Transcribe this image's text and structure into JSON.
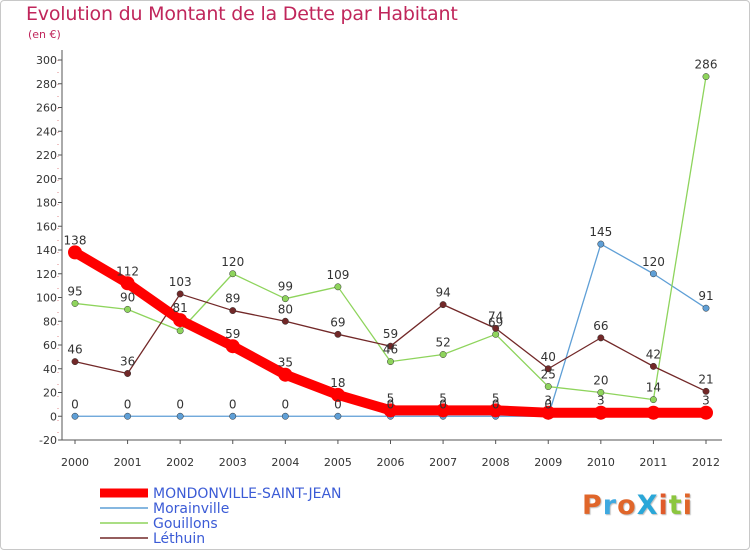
{
  "title": "Evolution du Montant de la Dette par Habitant",
  "subtitle": "(en €)",
  "logo": {
    "text": "ProXiti",
    "letter_colors": [
      "#e0662a",
      "#3fa9e0",
      "#e0662a",
      "#2aa7d8",
      "#e05a2a",
      "#8cc63f",
      "#e0662a"
    ]
  },
  "chart_data": {
    "type": "line",
    "title": "Evolution du Montant de la Dette par Habitant",
    "subtitle": "(en €)",
    "xlabel": "",
    "ylabel": "",
    "categories": [
      "2000",
      "2001",
      "2002",
      "2003",
      "2004",
      "2005",
      "2006",
      "2007",
      "2008",
      "2009",
      "2010",
      "2011",
      "2012"
    ],
    "ylim": [
      -20,
      300
    ],
    "yticks": [
      -20,
      0,
      20,
      40,
      60,
      80,
      100,
      120,
      140,
      160,
      180,
      200,
      220,
      240,
      260,
      280,
      300
    ],
    "grid": false,
    "legend_position": "bottom-left",
    "series": [
      {
        "name": "MONDONVILLE-SAINT-JEAN",
        "color": "#ff0000",
        "thick": true,
        "values": [
          138,
          112,
          81,
          59,
          35,
          18,
          5,
          5,
          5,
          3,
          3,
          3,
          3
        ],
        "labels": [
          "138",
          "112",
          "81",
          "59",
          "35",
          "18",
          "5",
          "5",
          "5",
          "3",
          "3",
          "",
          "3"
        ]
      },
      {
        "name": "Morainville",
        "color": "#5f9fd6",
        "thick": false,
        "values": [
          0,
          0,
          0,
          0,
          0,
          0,
          0,
          0,
          0,
          0,
          145,
          120,
          91
        ],
        "labels": [
          "0",
          "0",
          "0",
          "0",
          "0",
          "0",
          "0",
          "0",
          "0",
          "0",
          "145",
          "120",
          "91"
        ]
      },
      {
        "name": "Gouillons",
        "color": "#8ed45c",
        "thick": false,
        "values": [
          95,
          90,
          72,
          120,
          99,
          109,
          46,
          52,
          69,
          25,
          20,
          14,
          286
        ],
        "labels": [
          "95",
          "90",
          "",
          "120",
          "99",
          "109",
          "46",
          "52",
          "69",
          "25",
          "20",
          "14",
          "286"
        ]
      },
      {
        "name": "Léthuin",
        "color": "#722828",
        "thick": false,
        "values": [
          46,
          36,
          103,
          89,
          80,
          69,
          59,
          94,
          74,
          40,
          66,
          42,
          21
        ],
        "labels": [
          "46",
          "36",
          "103",
          "89",
          "80",
          "69",
          "59",
          "94",
          "74",
          "40",
          "66",
          "42",
          "21"
        ]
      }
    ]
  }
}
